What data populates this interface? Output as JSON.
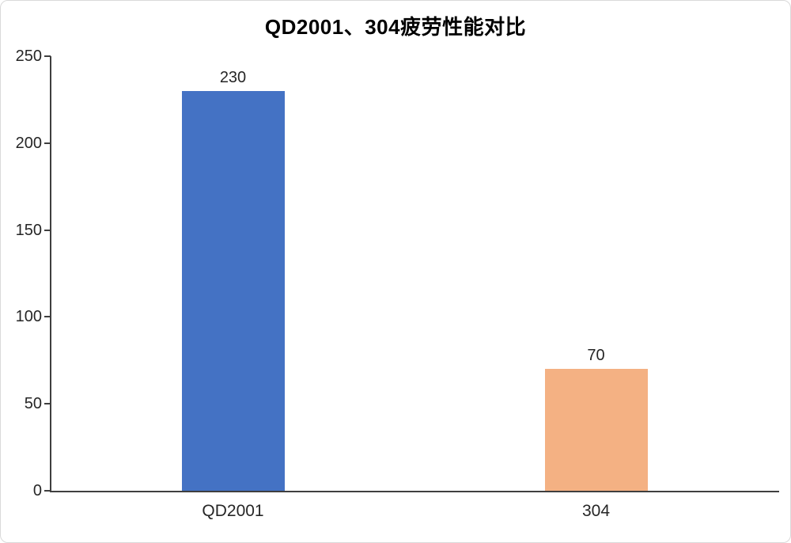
{
  "window": {
    "background": "#ffffff",
    "border_color": "#d9d9d9"
  },
  "chart_data": {
    "type": "bar",
    "title": "QD2001、304疲劳性能对比",
    "categories": [
      "QD2001",
      "304"
    ],
    "values": [
      230,
      70
    ],
    "data_labels": [
      "230",
      "70"
    ],
    "bar_colors": [
      "#4472C4",
      "#F4B183"
    ],
    "xlabel": "",
    "ylabel": "",
    "ylim": [
      0,
      250
    ],
    "yticks": [
      0,
      50,
      100,
      150,
      200,
      250
    ],
    "grid": false,
    "legend": false,
    "axis_color": "#3f3f3f",
    "text_color": "#262626",
    "title_color": "#000000"
  }
}
